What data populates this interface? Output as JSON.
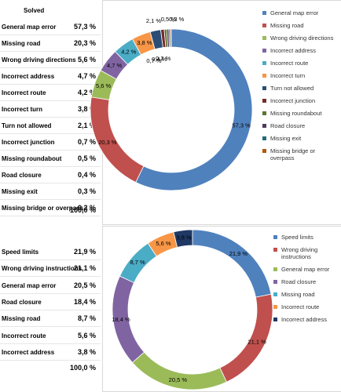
{
  "chart_data": [
    {
      "type": "donut",
      "categories": [
        "General map error",
        "Missing road",
        "Wrong driving directions",
        "Incorrect address",
        "Incorrect route",
        "Incorrect turn",
        "Turn not allowed",
        "Incorrect junction",
        "Missing roundabout",
        "Road closure",
        "Missing exit",
        "Missing bridge or overpass"
      ],
      "values": [
        57.3,
        20.3,
        5.6,
        4.7,
        4.2,
        3.8,
        2.1,
        0.7,
        0.5,
        0.4,
        0.3,
        0.2
      ],
      "value_labels": [
        "57,3 %",
        "20,3 %",
        "5,6 %",
        "4,7 %",
        "4,2 %",
        "3,8 %",
        "2,1 %",
        "0,7 %",
        "0,5 %",
        "0,4 %",
        "0,3 %",
        "0,2 %"
      ],
      "colors": [
        "#4f81bd",
        "#c0504d",
        "#9bbb59",
        "#8064a2",
        "#4bacc6",
        "#f79646",
        "#2c4d75",
        "#772c2a",
        "#5f7530",
        "#4d3b62",
        "#276a7c",
        "#b65708"
      ]
    },
    {
      "type": "donut",
      "categories": [
        "Speed limits",
        "Wrong driving instructions",
        "General map error",
        "Road closure",
        "Missing road",
        "Incorrect route",
        "Incorrect address"
      ],
      "values": [
        21.9,
        21.1,
        20.5,
        18.4,
        8.7,
        5.6,
        3.8
      ],
      "value_labels": [
        "21,9 %",
        "21,1 %",
        "20,5 %",
        "18,4 %",
        "8,7 %",
        "5,6 %",
        "3,8 %"
      ],
      "colors": [
        "#4f81bd",
        "#c0504d",
        "#9bbb59",
        "#8064a2",
        "#4bacc6",
        "#f79646",
        "#1f3864"
      ]
    }
  ],
  "tables": [
    {
      "header": "Solved",
      "total": "100,0 %"
    },
    {
      "total": "100,0 %"
    }
  ]
}
